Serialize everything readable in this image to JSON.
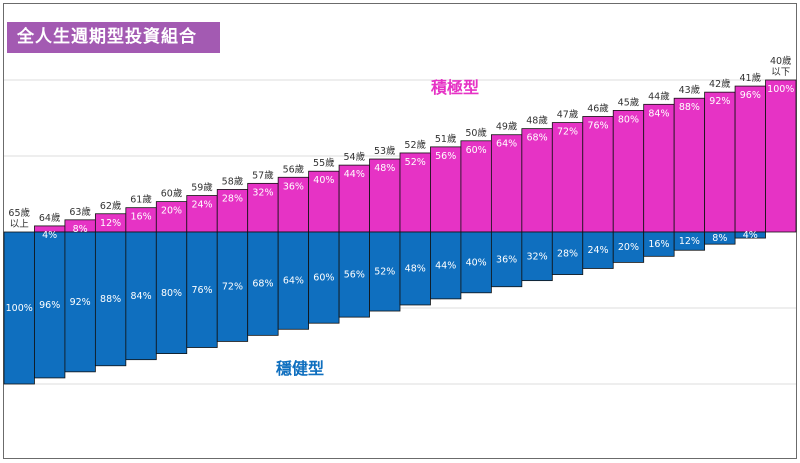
{
  "title": "全人生週期型投資組合",
  "chart_data": {
    "type": "bar",
    "stacked": true,
    "categories": [
      [
        "65歲",
        "以上"
      ],
      [
        "64歲"
      ],
      [
        "63歲"
      ],
      [
        "62歲"
      ],
      [
        "61歲"
      ],
      [
        "60歲"
      ],
      [
        "59歲"
      ],
      [
        "58歲"
      ],
      [
        "57歲"
      ],
      [
        "56歲"
      ],
      [
        "55歲"
      ],
      [
        "54歲"
      ],
      [
        "53歲"
      ],
      [
        "52歲"
      ],
      [
        "51歲"
      ],
      [
        "50歲"
      ],
      [
        "49歲"
      ],
      [
        "48歲"
      ],
      [
        "47歲"
      ],
      [
        "46歲"
      ],
      [
        "45歲"
      ],
      [
        "44歲"
      ],
      [
        "43歲"
      ],
      [
        "42歲"
      ],
      [
        "41歲"
      ],
      [
        "40歲",
        "以下"
      ]
    ],
    "series": [
      {
        "name": "積極型",
        "color": "#e633c5",
        "values": [
          0,
          4,
          8,
          12,
          16,
          20,
          24,
          28,
          32,
          36,
          40,
          44,
          48,
          52,
          56,
          60,
          64,
          68,
          72,
          76,
          80,
          84,
          88,
          92,
          96,
          100
        ],
        "labels": [
          "",
          "4%",
          "8%",
          "12%",
          "16%",
          "20%",
          "24%",
          "28%",
          "32%",
          "36%",
          "40%",
          "44%",
          "48%",
          "52%",
          "56%",
          "60%",
          "64%",
          "68%",
          "72%",
          "76%",
          "80%",
          "84%",
          "88%",
          "92%",
          "96%",
          "100%"
        ]
      },
      {
        "name": "穩健型",
        "color": "#0f6fbf",
        "values": [
          100,
          96,
          92,
          88,
          84,
          80,
          76,
          72,
          68,
          64,
          60,
          56,
          52,
          48,
          44,
          40,
          36,
          32,
          28,
          24,
          20,
          16,
          12,
          8,
          4,
          0
        ],
        "labels": [
          "100%",
          "96%",
          "92%",
          "88%",
          "84%",
          "80%",
          "76%",
          "72%",
          "68%",
          "64%",
          "60%",
          "56%",
          "52%",
          "48%",
          "44%",
          "40%",
          "36%",
          "32%",
          "28%",
          "24%",
          "20%",
          "16%",
          "12%",
          "8%",
          "4%",
          ""
        ]
      }
    ],
    "ylim": [
      -100,
      100
    ],
    "grid": true,
    "legend": "inline-labels"
  }
}
